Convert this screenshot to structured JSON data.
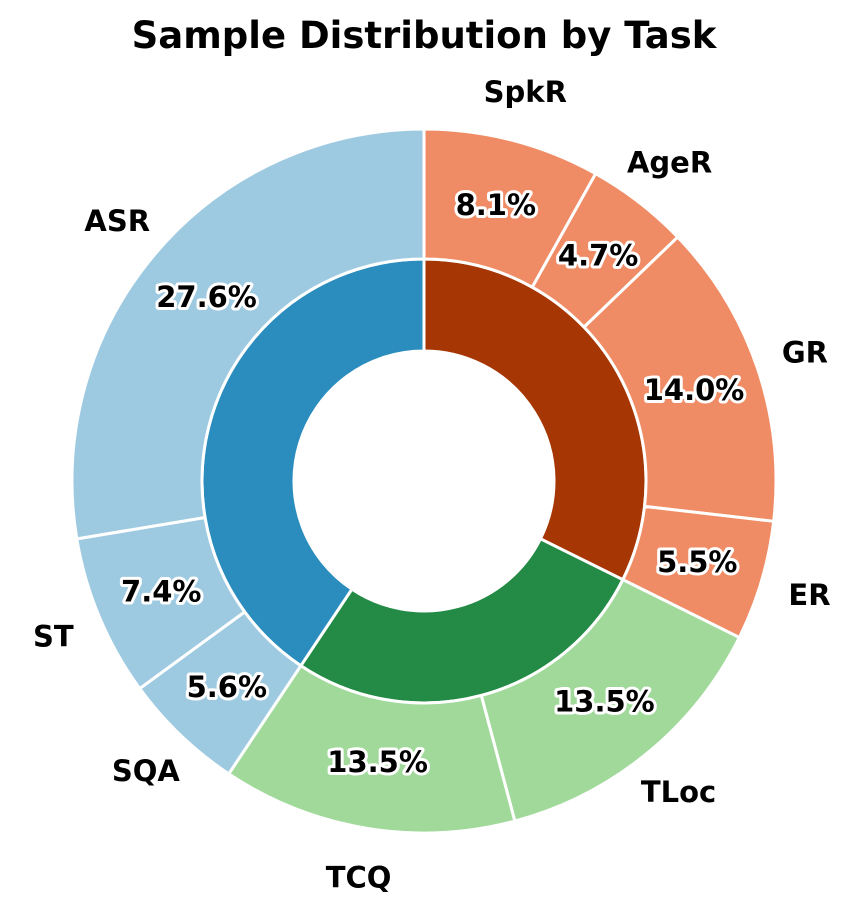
{
  "chart_data": {
    "type": "pie",
    "subtype": "nested-donut",
    "title": "Sample Distribution by Task",
    "outer_ring": {
      "categories": [
        "SpkR",
        "AgeR",
        "GR",
        "ER",
        "TLoc",
        "TCQ",
        "SQA",
        "ST",
        "ASR"
      ],
      "values": [
        8.1,
        4.7,
        14.0,
        5.5,
        13.5,
        13.5,
        5.6,
        7.4,
        27.6
      ],
      "value_labels": [
        "8.1%",
        "4.7%",
        "14.0%",
        "5.5%",
        "13.5%",
        "13.5%",
        "5.6%",
        "7.4%",
        "27.6%"
      ],
      "colors": [
        "#f08c65",
        "#f08c65",
        "#f08c65",
        "#f08c65",
        "#a1d99b",
        "#a1d99b",
        "#9ecae1",
        "#9ecae1",
        "#9ecae1"
      ]
    },
    "inner_ring": {
      "values": [
        32.3,
        27.0,
        40.6
      ],
      "colors": [
        "#a63603",
        "#238b45",
        "#2b8cbe"
      ]
    },
    "direction": "clockwise",
    "start": "top"
  }
}
